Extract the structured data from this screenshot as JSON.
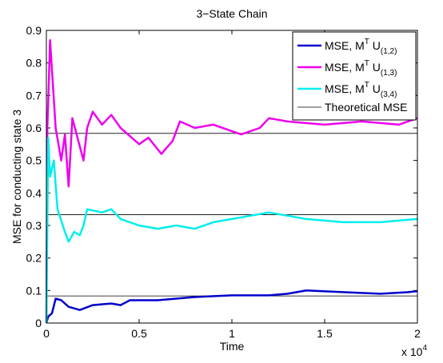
{
  "chart_data": {
    "type": "line",
    "title": "3−State Chain",
    "x_label": "Time",
    "y_label": "MSE for conducting state 3",
    "x_multiplier": {
      "base": "x 10",
      "exponent": "4"
    },
    "xlim": [
      0,
      2
    ],
    "xticks": [
      0,
      0.5,
      1,
      1.5,
      2
    ],
    "ylim": [
      0,
      0.9
    ],
    "yticks": [
      0,
      0.1,
      0.2,
      0.3,
      0.4,
      0.5,
      0.6,
      0.7,
      0.8,
      0.9
    ],
    "legend": "upper right",
    "series": [
      {
        "name": "MSE, M",
        "name_sup": "T",
        "name_mid": " U",
        "name_sub": "(1,2)",
        "color": "#0000cc",
        "x": [
          0,
          0.01,
          0.03,
          0.05,
          0.08,
          0.12,
          0.18,
          0.25,
          0.35,
          0.4,
          0.45,
          0.6,
          0.7,
          0.8,
          1.0,
          1.2,
          1.3,
          1.4,
          1.6,
          1.8,
          1.95,
          2.0
        ],
        "values": [
          0,
          0.02,
          0.03,
          0.075,
          0.07,
          0.05,
          0.04,
          0.055,
          0.06,
          0.055,
          0.07,
          0.07,
          0.075,
          0.08,
          0.085,
          0.085,
          0.09,
          0.1,
          0.095,
          0.09,
          0.095,
          0.098
        ]
      },
      {
        "name": "MSE, M",
        "name_sup": "T",
        "name_mid": " U",
        "name_sub": "(1,3)",
        "color": "#ee00ee",
        "x": [
          0,
          0.005,
          0.01,
          0.02,
          0.05,
          0.08,
          0.1,
          0.12,
          0.14,
          0.2,
          0.22,
          0.25,
          0.3,
          0.35,
          0.4,
          0.5,
          0.55,
          0.62,
          0.68,
          0.72,
          0.8,
          0.9,
          1.05,
          1.15,
          1.2,
          1.3,
          1.5,
          1.7,
          1.9,
          2.0
        ],
        "values": [
          0,
          0.6,
          0.68,
          0.87,
          0.6,
          0.5,
          0.58,
          0.42,
          0.63,
          0.5,
          0.6,
          0.65,
          0.61,
          0.64,
          0.6,
          0.55,
          0.57,
          0.52,
          0.56,
          0.62,
          0.6,
          0.61,
          0.58,
          0.6,
          0.63,
          0.62,
          0.61,
          0.62,
          0.61,
          0.63
        ]
      },
      {
        "name": "MSE, M",
        "name_sup": "T",
        "name_mid": " U",
        "name_sub": "(3,4)",
        "color": "#00eeee",
        "x": [
          0,
          0.01,
          0.02,
          0.04,
          0.06,
          0.1,
          0.12,
          0.15,
          0.18,
          0.2,
          0.22,
          0.3,
          0.35,
          0.4,
          0.5,
          0.6,
          0.7,
          0.8,
          0.9,
          1.0,
          1.1,
          1.2,
          1.3,
          1.4,
          1.6,
          1.8,
          2.0
        ],
        "values": [
          0,
          0.57,
          0.45,
          0.5,
          0.35,
          0.28,
          0.25,
          0.28,
          0.27,
          0.3,
          0.35,
          0.34,
          0.35,
          0.32,
          0.3,
          0.29,
          0.3,
          0.29,
          0.31,
          0.32,
          0.33,
          0.34,
          0.33,
          0.32,
          0.31,
          0.31,
          0.32
        ]
      }
    ],
    "reference_lines": {
      "name": "Theoretical MSE",
      "color": "#000000",
      "values": [
        0.5833,
        0.3333,
        0.0833
      ]
    }
  }
}
